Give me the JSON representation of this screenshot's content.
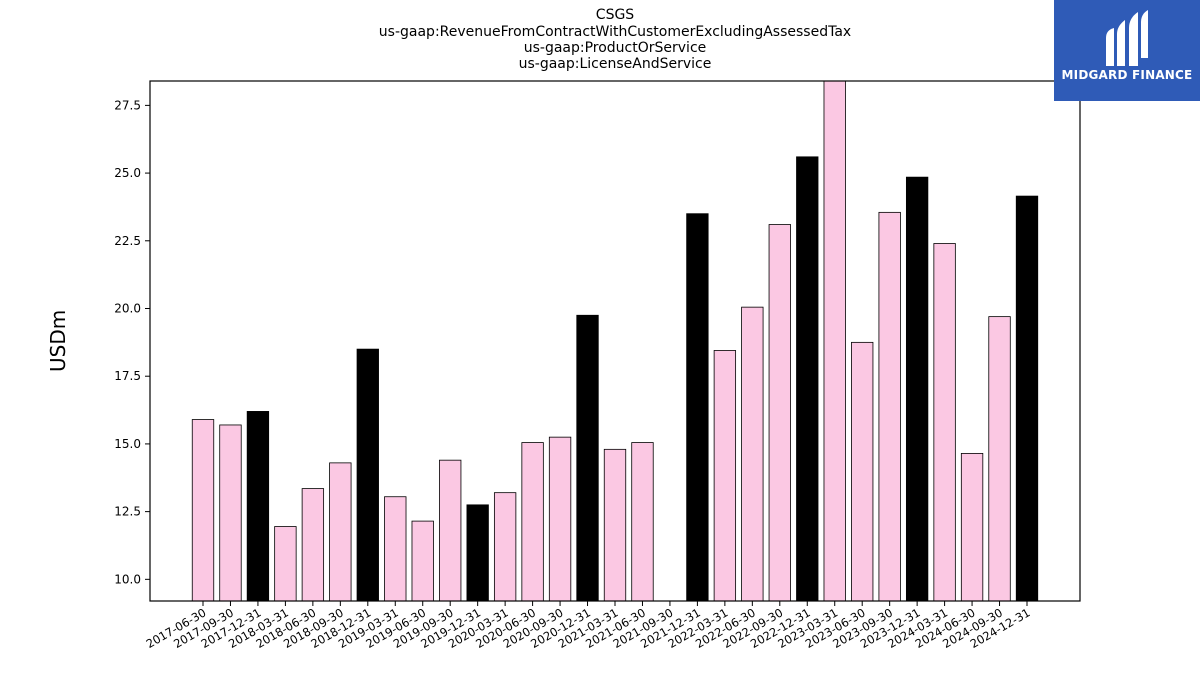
{
  "chart_data": {
    "type": "bar",
    "title_lines": [
      "CSGS",
      "us-gaap:RevenueFromContractWithCustomerExcludingAssessedTax",
      "us-gaap:ProductOrService",
      "us-gaap:LicenseAndService"
    ],
    "ylabel": "USDm",
    "ylim": [
      9.2,
      28.4
    ],
    "yticks": [
      "10.0",
      "12.5",
      "15.0",
      "17.5",
      "20.0",
      "22.5",
      "25.0",
      "27.5"
    ],
    "categories": [
      "2017-06-30",
      "2017-09-30",
      "2017-12-31",
      "2018-03-31",
      "2018-06-30",
      "2018-09-30",
      "2018-12-31",
      "2019-03-31",
      "2019-06-30",
      "2019-09-30",
      "2019-12-31",
      "2020-03-31",
      "2020-06-30",
      "2020-09-30",
      "2020-12-31",
      "2021-03-31",
      "2021-06-30",
      "2021-09-30",
      "2021-12-31",
      "2022-03-31",
      "2022-06-30",
      "2022-09-30",
      "2022-12-31",
      "2023-03-31",
      "2023-06-30",
      "2023-09-30",
      "2023-12-31",
      "2024-03-31",
      "2024-06-30",
      "2024-09-30",
      "2024-12-31"
    ],
    "values": [
      15.9,
      15.7,
      16.2,
      11.95,
      13.35,
      14.3,
      18.5,
      13.05,
      12.15,
      14.4,
      12.75,
      13.2,
      15.05,
      15.25,
      19.75,
      14.8,
      15.05,
      null,
      23.5,
      18.45,
      20.05,
      23.1,
      25.6,
      28.4,
      18.75,
      23.55,
      24.85,
      22.4,
      14.65,
      19.7,
      24.15
    ],
    "colors": {
      "quarter": "#fbc8e3",
      "year_end": "#000000",
      "edge": "#000000"
    },
    "grid": false,
    "legend": "none"
  },
  "logo": {
    "text": "MIDGARD FINANCE",
    "background": "#2f5bb7"
  }
}
